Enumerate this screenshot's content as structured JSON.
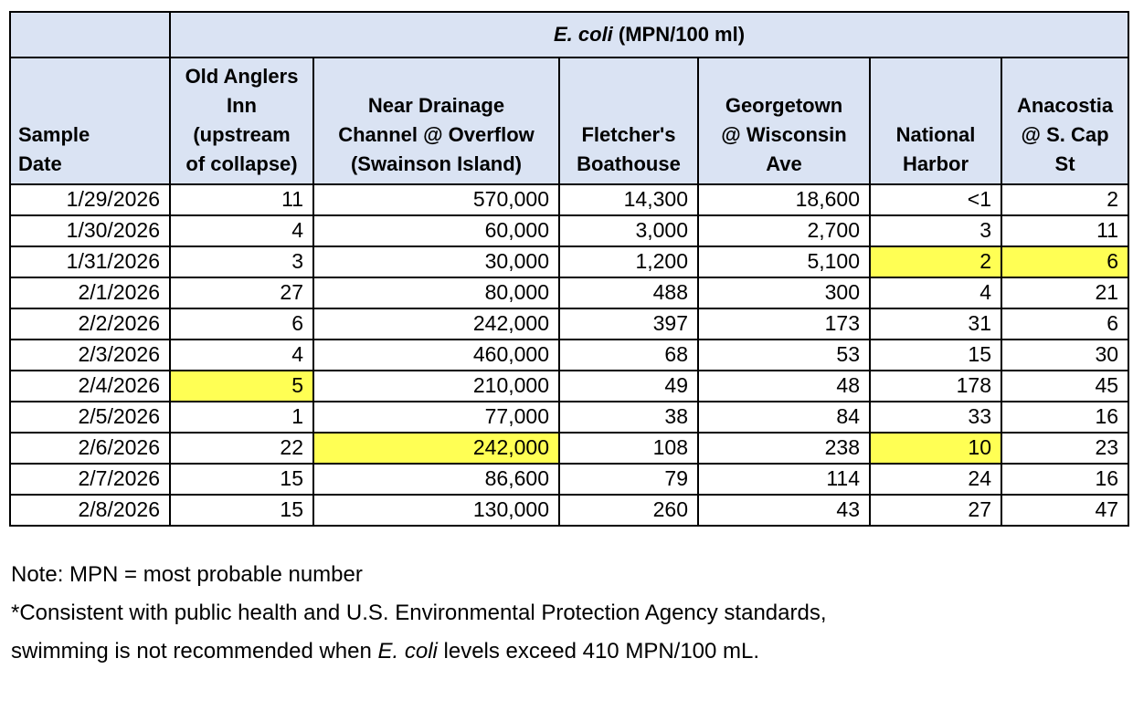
{
  "colors": {
    "header_bg": "#dae3f3",
    "highlight_bg": "#ffff54",
    "border": "#000000"
  },
  "table": {
    "corner": "",
    "title": {
      "italic": "E. coli",
      "rest": " (MPN/100 ml)"
    },
    "headers": [
      "Sample\nDate",
      "Old Anglers\nInn\n(upstream\nof collapse)",
      "Near Drainage\nChannel @ Overflow\n(Swainson Island)",
      "Fletcher's\nBoathouse",
      "Georgetown\n@ Wisconsin\nAve",
      "National\nHarbor",
      "Anacostia\n@ S. Cap\nSt"
    ],
    "rows": [
      {
        "cells": [
          "1/29/2026",
          "11",
          "570,000",
          "14,300",
          "18,600",
          "<1",
          "2"
        ],
        "highlights": []
      },
      {
        "cells": [
          "1/30/2026",
          "4",
          "60,000",
          "3,000",
          "2,700",
          "3",
          "11"
        ],
        "highlights": []
      },
      {
        "cells": [
          "1/31/2026",
          "3",
          "30,000",
          "1,200",
          "5,100",
          "2",
          "6"
        ],
        "highlights": [
          5,
          6
        ]
      },
      {
        "cells": [
          "2/1/2026",
          "27",
          "80,000",
          "488",
          "300",
          "4",
          "21"
        ],
        "highlights": []
      },
      {
        "cells": [
          "2/2/2026",
          "6",
          "242,000",
          "397",
          "173",
          "31",
          "6"
        ],
        "highlights": []
      },
      {
        "cells": [
          "2/3/2026",
          "4",
          "460,000",
          "68",
          "53",
          "15",
          "30"
        ],
        "highlights": []
      },
      {
        "cells": [
          "2/4/2026",
          "5",
          "210,000",
          "49",
          "48",
          "178",
          "45"
        ],
        "highlights": [
          1
        ]
      },
      {
        "cells": [
          "2/5/2026",
          "1",
          "77,000",
          "38",
          "84",
          "33",
          "16"
        ],
        "highlights": []
      },
      {
        "cells": [
          "2/6/2026",
          "22",
          "242,000",
          "108",
          "238",
          "10",
          "23"
        ],
        "highlights": [
          2,
          5
        ]
      },
      {
        "cells": [
          "2/7/2026",
          "15",
          "86,600",
          "79",
          "114",
          "24",
          "16"
        ],
        "highlights": []
      },
      {
        "cells": [
          "2/8/2026",
          "15",
          "130,000",
          "260",
          "43",
          "27",
          "47"
        ],
        "highlights": []
      }
    ]
  },
  "notes": {
    "line1": "Note: MPN = most probable number",
    "line2": "*Consistent with public health and U.S. Environmental Protection Agency standards,",
    "line3_prefix": "swimming is not recommended when ",
    "line3_italic": "E. coli",
    "line3_suffix": " levels exceed 410 MPN/100 mL."
  }
}
